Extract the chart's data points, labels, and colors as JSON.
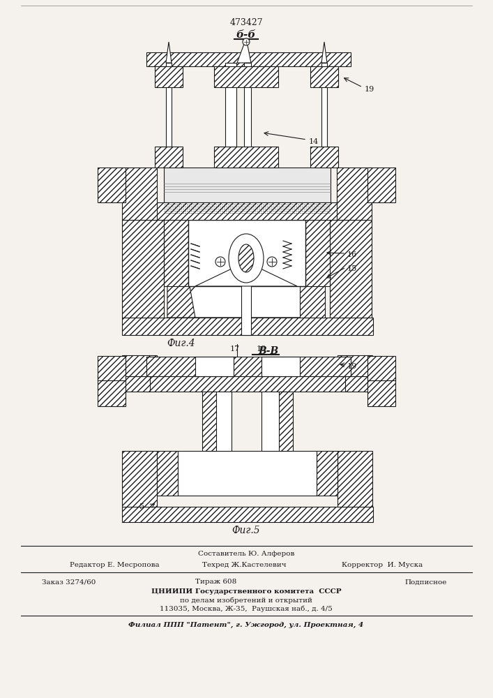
{
  "patent_number": "473427",
  "fig4_label": "б-б",
  "fig4_caption": "Фиг.4",
  "fig5_label": "В-В",
  "fig5_caption": "Фиг.5",
  "label_14": "14",
  "label_15": "15",
  "label_16": "16",
  "label_17": "17",
  "label_18": "18",
  "label_19": "19",
  "label_5": "5",
  "footer_line1": "Составитель Ю. Алферов",
  "footer_editor": "Редактор Е. Месропова",
  "footer_tech": "Техред Ж.Кастелевич",
  "footer_corrector": "Корректор  И. Муска",
  "footer_order": "Заказ 3274/60",
  "footer_tirazh": "Тираж 608",
  "footer_podpisnoe": "Подписное",
  "footer_org1": "ЦНИИПИ Государственного комитета  СССР",
  "footer_org2": "по делам изобретений и открытий",
  "footer_org3": "113035, Москва, Ж-35,  Раушская наб., д. 4/5",
  "footer_filial": "Филиал ППП \"Патент\", г. Ужгород, ул. Проектная, 4",
  "bg_color": "#f5f2ee",
  "line_color": "#1a1a1a",
  "hatch_color": "#333333"
}
